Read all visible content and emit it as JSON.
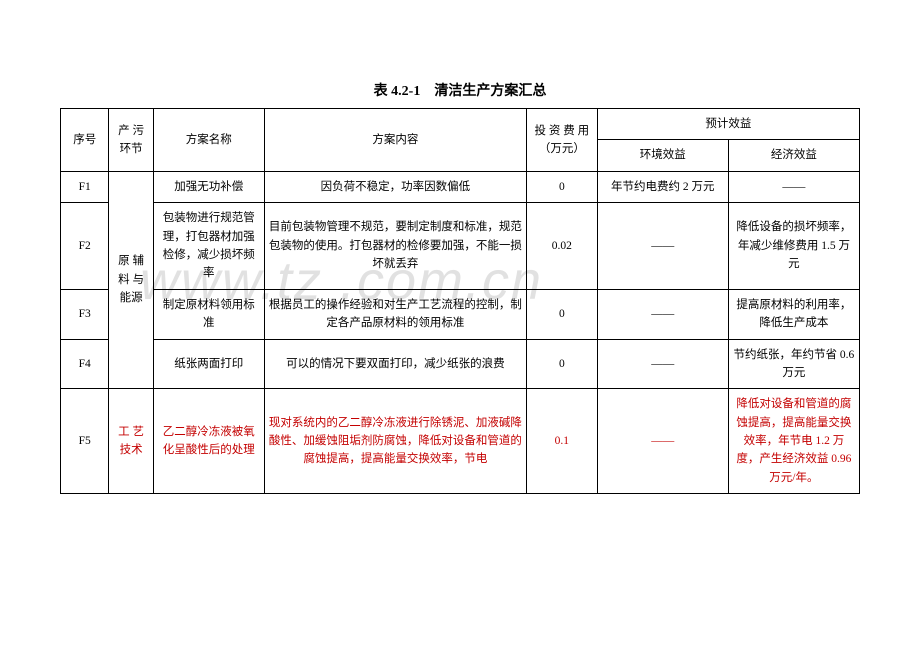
{
  "title": "表 4.2-1　清洁生产方案汇总",
  "watermark": "www.tz .com.cn",
  "headers": {
    "seq": "序号",
    "stage": "产 污 环节",
    "name": "方案名称",
    "content": "方案内容",
    "invest": "投 资 费 用（万元）",
    "benefit": "预计效益",
    "env": "环境效益",
    "econ": "经济效益"
  },
  "stage1": "原 辅 料 与 能源",
  "stage2": "工 艺 技术",
  "dash": "——",
  "rows": {
    "r1": {
      "seq": "F1",
      "name": "加强无功补偿",
      "content": "因负荷不稳定，功率因数偏低",
      "invest": "0",
      "env": "年节约电费约 2 万元",
      "econ": "——"
    },
    "r2": {
      "seq": "F2",
      "name": "包装物进行规范管理，打包器材加强检修，减少损坏频率",
      "content": "目前包装物管理不规范，要制定制度和标准，规范包装物的使用。打包器材的检修要加强，不能一损坏就丢弃",
      "invest": "0.02",
      "env": "——",
      "econ": "降低设备的损坏频率，年减少维修费用 1.5 万元"
    },
    "r3": {
      "seq": "F3",
      "name": "制定原材料领用标准",
      "content": "根据员工的操作经验和对生产工艺流程的控制，制定各产品原材料的领用标准",
      "invest": "0",
      "env": "——",
      "econ": "提高原材料的利用率，降低生产成本"
    },
    "r4": {
      "seq": "F4",
      "name": "纸张两面打印",
      "content": "可以的情况下要双面打印，减少纸张的浪费",
      "invest": "0",
      "env": "——",
      "econ": "节约纸张，年约节省 0.6 万元"
    },
    "r5": {
      "seq": "F5",
      "name": "乙二醇冷冻液被氧化呈酸性后的处理",
      "content": "现对系统内的乙二醇冷冻液进行除锈泥、加液碱降酸性、加缓蚀阻垢剂防腐蚀，降低对设备和管道的腐蚀提高，提高能量交换效率，节电",
      "invest": "0.1",
      "env": "——",
      "econ": "降低对设备和管道的腐蚀提高，提高能量交换效率，年节电 1.2 万度，产生经济效益 0.96 万元/年。"
    }
  }
}
